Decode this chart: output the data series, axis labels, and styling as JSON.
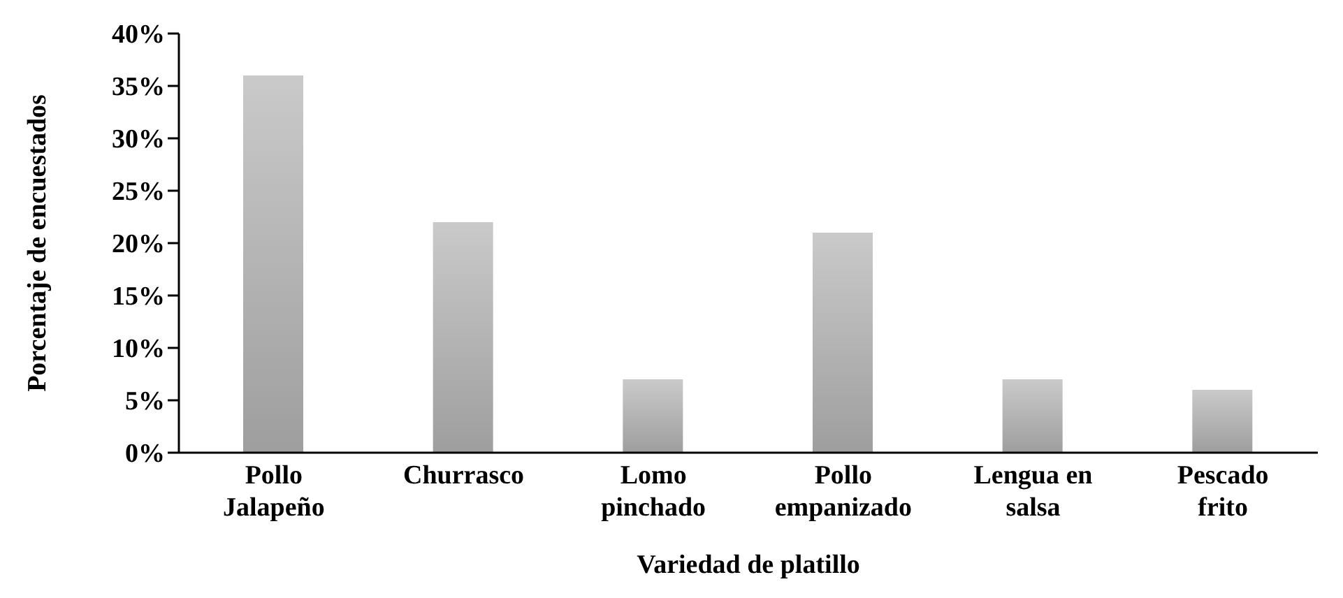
{
  "chart_data": {
    "type": "bar",
    "xlabel": "Variedad de platillo",
    "ylabel": "Porcentaje de encuestados",
    "categories": [
      "Pollo Jalapeño",
      "Churrasco",
      "Lomo pinchado",
      "Pollo empanizado",
      "Lengua en salsa",
      "Pescado frito"
    ],
    "series": [
      {
        "color": "#9e9e9e",
        "values": [
          36,
          22,
          7,
          21,
          7,
          6
        ]
      }
    ],
    "ylim": [
      0,
      40
    ],
    "yticks": [
      {
        "value": 0,
        "label": "0%"
      },
      {
        "value": 5,
        "label": "5%"
      },
      {
        "value": 10,
        "label": "10%"
      },
      {
        "value": 15,
        "label": "15%"
      },
      {
        "value": 20,
        "label": "20%"
      },
      {
        "value": 25,
        "label": "25%"
      },
      {
        "value": 30,
        "label": "30%"
      },
      {
        "value": 35,
        "label": "35%"
      },
      {
        "value": 40,
        "label": "40%"
      }
    ],
    "grid": false,
    "legend": false
  }
}
